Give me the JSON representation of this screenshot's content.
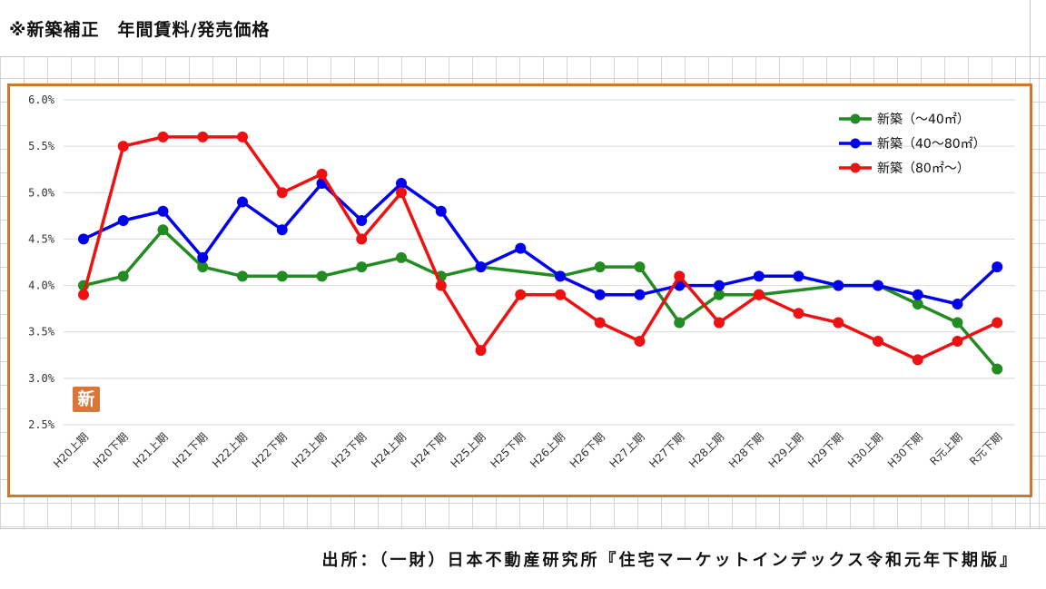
{
  "title": "※新築補正　年間賃料/発売価格",
  "source": "出所：（一財）日本不動産研究所『住宅マーケットインデックス令和元年下期版』",
  "badge": "新",
  "colors": {
    "green": "#228b22",
    "blue": "#0000ee",
    "red": "#ee1111",
    "frame": "#c97a2e"
  },
  "chart_data": {
    "type": "line",
    "title": "",
    "xlabel": "",
    "ylabel": "",
    "ylim": [
      2.5,
      6.0
    ],
    "yticks": [
      "2.5%",
      "3.0%",
      "3.5%",
      "4.0%",
      "4.5%",
      "5.0%",
      "5.5%",
      "6.0%"
    ],
    "categories": [
      "H20上期",
      "H20下期",
      "H21上期",
      "H21下期",
      "H22上期",
      "H22下期",
      "H23上期",
      "H23下期",
      "H24上期",
      "H24下期",
      "H25上期",
      "H25下期",
      "H26上期",
      "H26下期",
      "H27上期",
      "H27下期",
      "H28上期",
      "H28下期",
      "H29上期",
      "H29下期",
      "H30上期",
      "H30下期",
      "R元上期",
      "R元下期"
    ],
    "legend_position": "top-right",
    "series": [
      {
        "name": "新築（～40㎡）",
        "color": "#228b22",
        "values": [
          4.0,
          4.1,
          4.6,
          4.2,
          4.1,
          4.1,
          4.1,
          4.2,
          4.3,
          4.1,
          4.2,
          null,
          4.1,
          4.2,
          4.2,
          3.6,
          3.9,
          3.9,
          null,
          4.0,
          4.0,
          3.8,
          3.6,
          3.1
        ]
      },
      {
        "name": "新築（40～80㎡）",
        "color": "#0000ee",
        "values": [
          4.5,
          4.7,
          4.8,
          4.3,
          4.9,
          4.6,
          5.1,
          4.7,
          5.1,
          4.8,
          4.2,
          4.4,
          4.1,
          3.9,
          3.9,
          4.0,
          4.0,
          4.1,
          4.1,
          4.0,
          4.0,
          3.9,
          3.8,
          4.2
        ]
      },
      {
        "name": "新築（80㎡～）",
        "color": "#ee1111",
        "values": [
          3.9,
          5.5,
          5.6,
          5.6,
          5.6,
          5.0,
          5.2,
          4.5,
          5.0,
          4.0,
          3.3,
          3.9,
          3.9,
          3.6,
          3.4,
          4.1,
          3.6,
          3.9,
          3.7,
          3.6,
          3.4,
          3.2,
          3.4,
          3.6
        ]
      }
    ]
  }
}
